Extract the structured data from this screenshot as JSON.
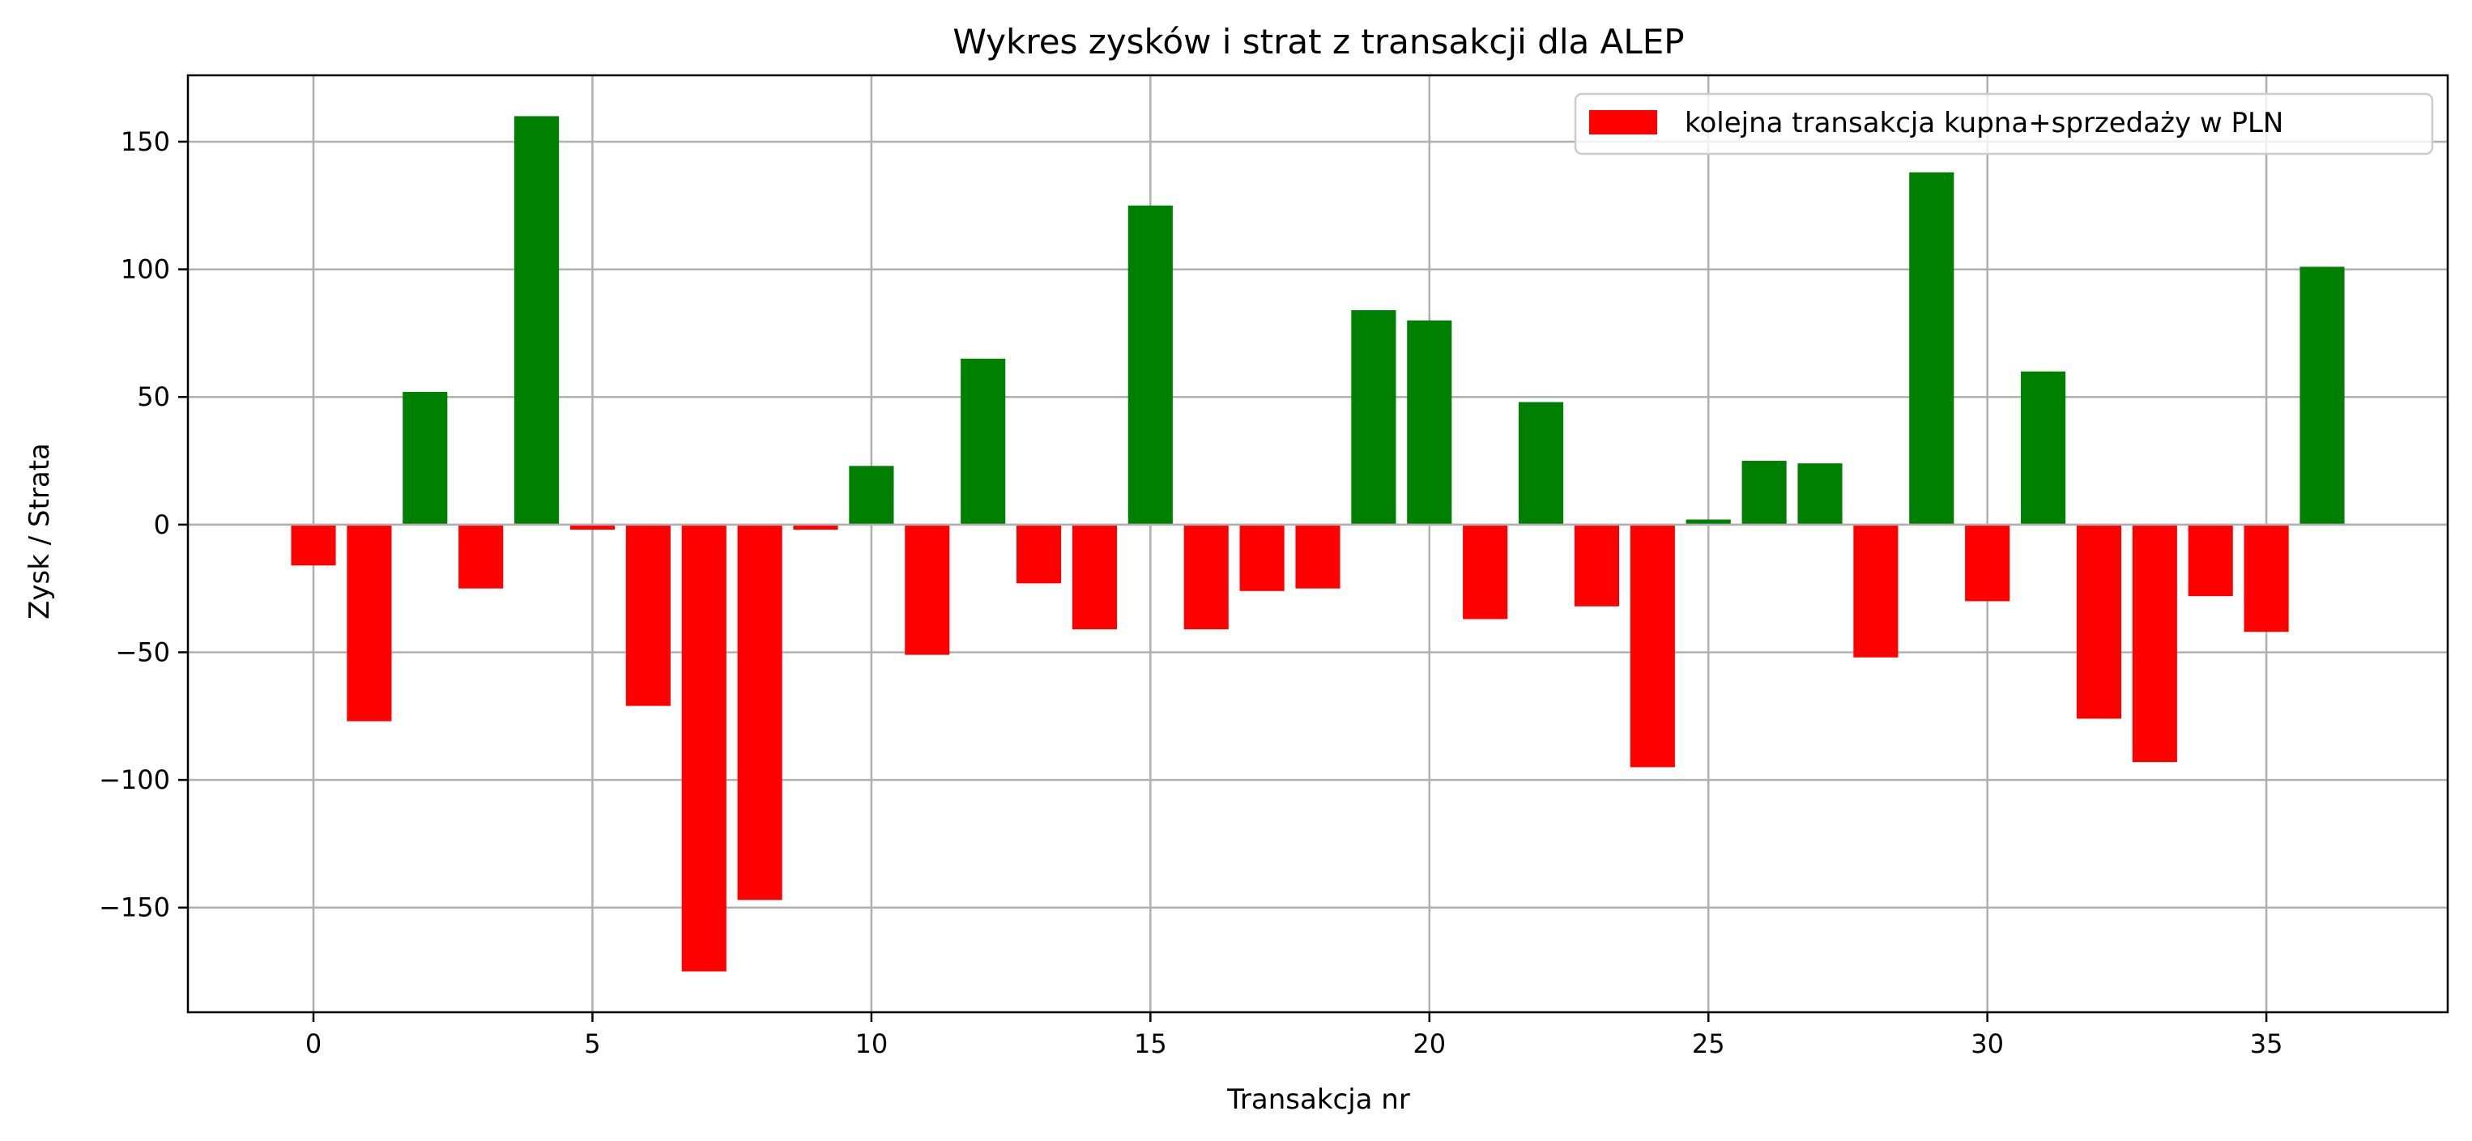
{
  "chart_data": {
    "type": "bar",
    "title": "Wykres zysków i strat z transakcji dla ALEP",
    "xlabel": "Transakcja nr",
    "ylabel": "Zysk / Strata",
    "xlim": [
      -2.25,
      38.25
    ],
    "ylim": [
      -191,
      176
    ],
    "xticks": [
      0,
      5,
      10,
      15,
      20,
      25,
      30,
      35
    ],
    "xtick_labels": [
      "0",
      "5",
      "10",
      "15",
      "20",
      "25",
      "30",
      "35"
    ],
    "yticks": [
      -150,
      -100,
      -50,
      0,
      50,
      100,
      150
    ],
    "ytick_labels": [
      "−150",
      "−100",
      "−50",
      "0",
      "50",
      "100",
      "150"
    ],
    "grid": true,
    "legend": {
      "position": "top-right",
      "label": "kolejna transakcja kupna+sprzedaży w PLN",
      "color": "#ff0000"
    },
    "colors": {
      "profit": "#008000",
      "loss": "#ff0000"
    },
    "x": [
      0,
      1,
      2,
      3,
      4,
      5,
      6,
      7,
      8,
      9,
      10,
      11,
      12,
      13,
      14,
      15,
      16,
      17,
      18,
      19,
      20,
      21,
      22,
      23,
      24,
      25,
      26,
      27,
      28,
      29,
      30,
      31,
      32,
      33,
      34,
      35,
      36
    ],
    "values": [
      -16,
      -77,
      52,
      -25,
      160,
      -2,
      -71,
      -175,
      -147,
      -2,
      23,
      -51,
      65,
      -23,
      -41,
      125,
      -41,
      -26,
      -25,
      84,
      80,
      -37,
      48,
      -32,
      -95,
      2,
      25,
      24,
      -52,
      138,
      -30,
      60,
      -76,
      -93,
      -28,
      -42,
      101
    ]
  }
}
